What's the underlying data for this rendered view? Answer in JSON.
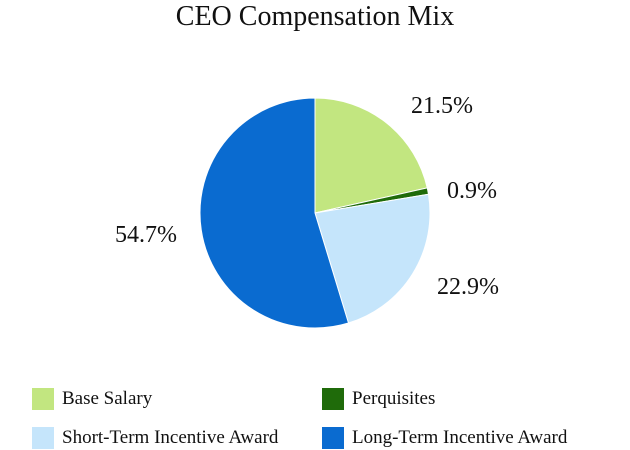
{
  "chart_data": {
    "type": "pie",
    "title": "CEO Compensation Mix",
    "slices": [
      {
        "label": "Base Salary",
        "value": 21.5,
        "display": "21.5%",
        "color": "#c2e680"
      },
      {
        "label": "Perquisites",
        "value": 0.9,
        "display": "0.9%",
        "color": "#1f6b0a"
      },
      {
        "label": "Short-Term Incentive Award",
        "value": 22.9,
        "display": "22.9%",
        "color": "#c5e5fb"
      },
      {
        "label": "Long-Term Incentive Award",
        "value": 54.7,
        "display": "54.7%",
        "color": "#0a6bd0"
      }
    ],
    "start_angle": "12 o'clock",
    "direction": "clockwise",
    "legend_position": "bottom",
    "legend_columns": 2
  }
}
